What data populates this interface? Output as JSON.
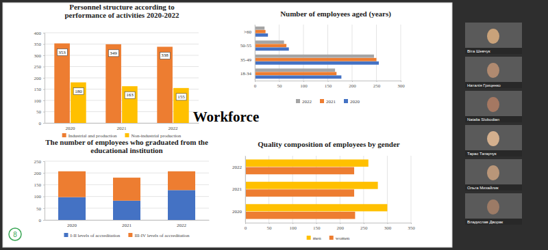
{
  "slide": {
    "title": "Workforce",
    "page_number": "8"
  },
  "participants": [
    "Віта Шевчук",
    "Наталія Гриценко",
    "Natalia Slobodian",
    "Тарас Татарчук",
    "Ольга Михайлик",
    "Владислав Дворак"
  ],
  "chart_data": [
    {
      "type": "bar",
      "title": "Personnel structure according to performance of activities 2020-2022",
      "categories": [
        "2020",
        "2021",
        "2022"
      ],
      "series": [
        {
          "name": "Industrial and production",
          "color": "#ed7d31",
          "values": [
            353,
            349,
            338
          ]
        },
        {
          "name": "Non-industrial production",
          "color": "#ffc000",
          "values": [
            180,
            163,
            155
          ]
        }
      ],
      "ylim": [
        0,
        400
      ],
      "yticks": [
        0,
        50,
        100,
        150,
        200,
        250,
        300,
        350,
        400
      ],
      "grid": true,
      "data_labels": true,
      "legend": "bottom"
    },
    {
      "type": "bar",
      "orientation": "horizontal",
      "title": "Number of employees aged (years)",
      "categories": [
        ">60",
        "50-55",
        "35-49",
        "18-34"
      ],
      "series": [
        {
          "name": "2022",
          "color": "#a5a5a5",
          "values": [
            20,
            60,
            245,
            165
          ]
        },
        {
          "name": "2021",
          "color": "#ed7d31",
          "values": [
            22,
            65,
            250,
            168
          ]
        },
        {
          "name": "2020",
          "color": "#4472c4",
          "values": [
            27,
            70,
            255,
            178
          ]
        }
      ],
      "xlim": [
        0,
        300
      ],
      "xticks": [
        0,
        50,
        100,
        150,
        200,
        250,
        300
      ],
      "grid": true,
      "legend": "bottom"
    },
    {
      "type": "bar",
      "stacked": true,
      "title": "The number of employees who graduated from the educational institution",
      "categories": [
        "2020",
        "2021",
        "2022"
      ],
      "series": [
        {
          "name": "I-II levels of accreditation",
          "color": "#4472c4",
          "values": [
            97,
            82,
            127
          ]
        },
        {
          "name": "III-IV levels of accreditation",
          "color": "#ed7d31",
          "values": [
            110,
            98,
            80
          ]
        }
      ],
      "ylim": [
        0,
        250
      ],
      "yticks": [
        0,
        50,
        100,
        150,
        200,
        250
      ],
      "grid": true,
      "legend": "bottom"
    },
    {
      "type": "bar",
      "orientation": "horizontal",
      "title": "Quality composition of employees by gender",
      "categories": [
        "2022",
        "2021",
        "2020"
      ],
      "series": [
        {
          "name": "men",
          "color": "#ffc000",
          "values": [
            260,
            280,
            300
          ]
        },
        {
          "name": "women",
          "color": "#ed7d31",
          "values": [
            230,
            230,
            232
          ]
        }
      ],
      "xlim": [
        0,
        350
      ],
      "xticks": [
        0,
        50,
        100,
        150,
        200,
        250,
        300,
        350
      ],
      "grid": true,
      "legend": "bottom"
    }
  ]
}
